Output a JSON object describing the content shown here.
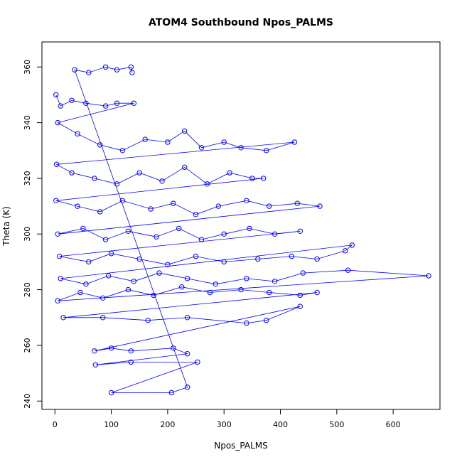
{
  "chart_data": {
    "type": "scatter",
    "title": "ATOM4 Southbound Npos_PALMS",
    "xlabel": "Npos_PALMS",
    "ylabel": "Theta (K)",
    "xlim": [
      -23,
      683
    ],
    "ylim": [
      237,
      369
    ],
    "xticks": [
      0,
      100,
      200,
      300,
      400,
      500,
      600
    ],
    "yticks": [
      240,
      260,
      280,
      300,
      320,
      340,
      360
    ],
    "grid": false,
    "marker": "open-circle",
    "lines_connecting_points": true,
    "color": "#0000ff",
    "series": [
      {
        "values": [
          {
            "x": 2,
            "y": 350
          },
          {
            "x": 10,
            "y": 346
          },
          {
            "x": 30,
            "y": 348
          },
          {
            "x": 55,
            "y": 347
          },
          {
            "x": 90,
            "y": 346
          },
          {
            "x": 110,
            "y": 347
          },
          {
            "x": 140,
            "y": 347
          },
          {
            "x": 5,
            "y": 340
          },
          {
            "x": 40,
            "y": 336
          },
          {
            "x": 80,
            "y": 332
          },
          {
            "x": 120,
            "y": 330
          },
          {
            "x": 160,
            "y": 334
          },
          {
            "x": 200,
            "y": 333
          },
          {
            "x": 230,
            "y": 337
          },
          {
            "x": 260,
            "y": 331
          },
          {
            "x": 300,
            "y": 333
          },
          {
            "x": 330,
            "y": 331
          },
          {
            "x": 375,
            "y": 330
          },
          {
            "x": 425,
            "y": 333
          },
          {
            "x": 3,
            "y": 325
          },
          {
            "x": 30,
            "y": 322
          },
          {
            "x": 70,
            "y": 320
          },
          {
            "x": 110,
            "y": 318
          },
          {
            "x": 150,
            "y": 322
          },
          {
            "x": 190,
            "y": 319
          },
          {
            "x": 230,
            "y": 324
          },
          {
            "x": 270,
            "y": 318
          },
          {
            "x": 310,
            "y": 322
          },
          {
            "x": 350,
            "y": 320
          },
          {
            "x": 370,
            "y": 320
          },
          {
            "x": 2,
            "y": 312
          },
          {
            "x": 40,
            "y": 310
          },
          {
            "x": 80,
            "y": 308
          },
          {
            "x": 120,
            "y": 312
          },
          {
            "x": 170,
            "y": 309
          },
          {
            "x": 210,
            "y": 311
          },
          {
            "x": 250,
            "y": 307
          },
          {
            "x": 290,
            "y": 310
          },
          {
            "x": 340,
            "y": 312
          },
          {
            "x": 380,
            "y": 310
          },
          {
            "x": 430,
            "y": 311
          },
          {
            "x": 470,
            "y": 310
          },
          {
            "x": 5,
            "y": 300
          },
          {
            "x": 50,
            "y": 302
          },
          {
            "x": 90,
            "y": 298
          },
          {
            "x": 130,
            "y": 301
          },
          {
            "x": 180,
            "y": 299
          },
          {
            "x": 220,
            "y": 302
          },
          {
            "x": 260,
            "y": 298
          },
          {
            "x": 300,
            "y": 300
          },
          {
            "x": 345,
            "y": 302
          },
          {
            "x": 390,
            "y": 300
          },
          {
            "x": 435,
            "y": 301
          },
          {
            "x": 8,
            "y": 292
          },
          {
            "x": 60,
            "y": 290
          },
          {
            "x": 100,
            "y": 293
          },
          {
            "x": 150,
            "y": 291
          },
          {
            "x": 200,
            "y": 289
          },
          {
            "x": 250,
            "y": 292
          },
          {
            "x": 300,
            "y": 290
          },
          {
            "x": 360,
            "y": 291
          },
          {
            "x": 420,
            "y": 292
          },
          {
            "x": 465,
            "y": 291
          },
          {
            "x": 515,
            "y": 294
          },
          {
            "x": 527,
            "y": 296
          },
          {
            "x": 10,
            "y": 284
          },
          {
            "x": 55,
            "y": 282
          },
          {
            "x": 95,
            "y": 285
          },
          {
            "x": 140,
            "y": 283
          },
          {
            "x": 185,
            "y": 286
          },
          {
            "x": 235,
            "y": 284
          },
          {
            "x": 285,
            "y": 282
          },
          {
            "x": 340,
            "y": 284
          },
          {
            "x": 390,
            "y": 283
          },
          {
            "x": 440,
            "y": 286
          },
          {
            "x": 520,
            "y": 287
          },
          {
            "x": 663,
            "y": 285
          },
          {
            "x": 5,
            "y": 276
          },
          {
            "x": 45,
            "y": 279
          },
          {
            "x": 85,
            "y": 277
          },
          {
            "x": 130,
            "y": 280
          },
          {
            "x": 175,
            "y": 278
          },
          {
            "x": 225,
            "y": 281
          },
          {
            "x": 275,
            "y": 279
          },
          {
            "x": 330,
            "y": 280
          },
          {
            "x": 380,
            "y": 279
          },
          {
            "x": 435,
            "y": 278
          },
          {
            "x": 465,
            "y": 279
          },
          {
            "x": 15,
            "y": 270
          },
          {
            "x": 85,
            "y": 270
          },
          {
            "x": 165,
            "y": 269
          },
          {
            "x": 235,
            "y": 270
          },
          {
            "x": 340,
            "y": 268
          },
          {
            "x": 375,
            "y": 269
          },
          {
            "x": 435,
            "y": 274
          },
          {
            "x": 70,
            "y": 258
          },
          {
            "x": 100,
            "y": 259
          },
          {
            "x": 135,
            "y": 258
          },
          {
            "x": 210,
            "y": 259
          },
          {
            "x": 235,
            "y": 257
          },
          {
            "x": 72,
            "y": 253
          },
          {
            "x": 135,
            "y": 254
          },
          {
            "x": 253,
            "y": 254
          },
          {
            "x": 100,
            "y": 243
          },
          {
            "x": 207,
            "y": 243
          },
          {
            "x": 235,
            "y": 245
          },
          {
            "x": 35,
            "y": 359
          },
          {
            "x": 60,
            "y": 358
          },
          {
            "x": 90,
            "y": 360
          },
          {
            "x": 110,
            "y": 359
          },
          {
            "x": 135,
            "y": 360
          },
          {
            "x": 137,
            "y": 358
          }
        ]
      }
    ]
  }
}
